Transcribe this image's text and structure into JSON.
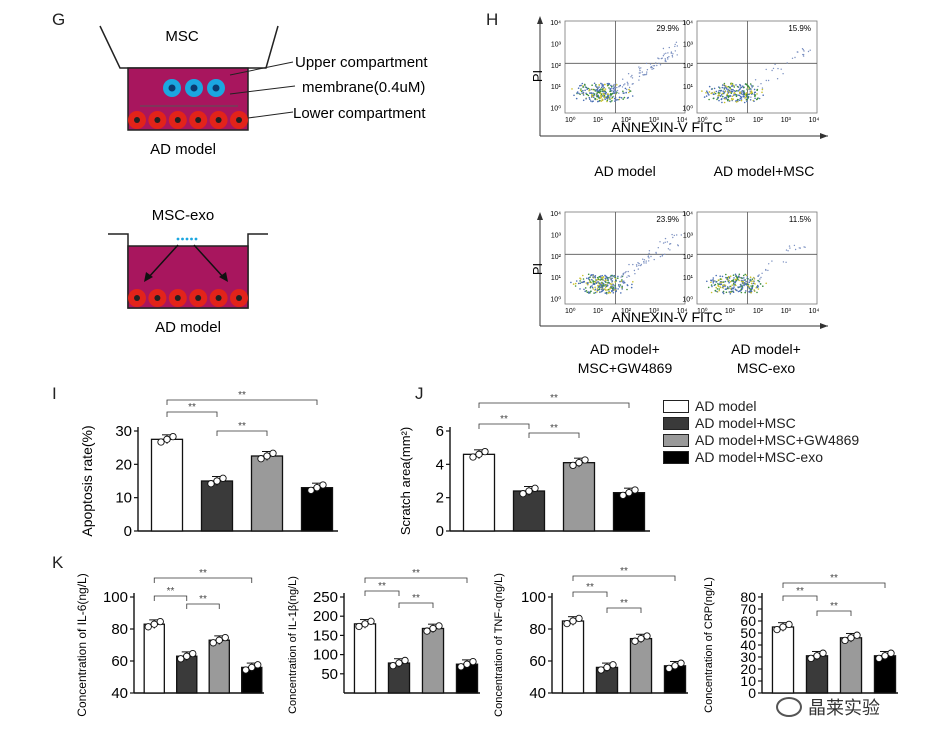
{
  "colors": {
    "magenta": "#a8165e",
    "cell_red": "#e2231a",
    "msc_blue": "#1ba7e0",
    "bar_ad": "#ffffff",
    "bar_msc": "#3a3a3a",
    "bar_gw": "#9a9a9a",
    "bar_exo": "#000000"
  },
  "panel_g": {
    "letter": "G",
    "msc_label": "MSC",
    "upper": "Upper compartment",
    "membrane": "membrane(0.4uM)",
    "lower": "Lower compartment",
    "ad_model_1": "AD model",
    "exo_label": "MSC-exo",
    "ad_model_2": "AD model"
  },
  "panel_h": {
    "letter": "H",
    "ylabel": "PI",
    "xlabel": "ANNEXIN-V FITC",
    "plots": [
      {
        "percent": "29.9%",
        "caption": [
          "AD model"
        ]
      },
      {
        "percent": "15.9%",
        "caption": [
          "AD model+MSC"
        ]
      },
      {
        "percent": "23.9%",
        "caption": [
          "AD model+",
          "MSC+GW4869"
        ]
      },
      {
        "percent": "11.5%",
        "caption": [
          "AD model+",
          "MSC-exo"
        ]
      }
    ],
    "ticks": [
      "10⁴",
      "10³",
      "10²",
      "10¹",
      "10⁰"
    ],
    "xticks": [
      "10⁰",
      "10¹",
      "10²",
      "10³",
      "10⁴"
    ]
  },
  "legend": [
    "AD model",
    "AD model+MSC",
    "AD model+MSC+GW4869",
    "AD model+MSC-exo"
  ],
  "sig": "**",
  "chart_data": [
    {
      "id": "I",
      "type": "bar",
      "ylabel": "Apoptosis rate(%)",
      "ylim": [
        0,
        30
      ],
      "yticks": [
        0,
        10,
        20,
        30
      ],
      "categories": [
        "AD model",
        "AD model+MSC",
        "AD model+MSC+GW4869",
        "AD model+MSC-exo"
      ],
      "values": [
        27.5,
        15,
        22.5,
        13
      ]
    },
    {
      "id": "J",
      "type": "bar",
      "ylabel": "Scratch area(mm²)",
      "ylim": [
        0,
        6
      ],
      "yticks": [
        0,
        2,
        4,
        6
      ],
      "categories": [
        "AD model",
        "AD model+MSC",
        "AD model+MSC+GW4869",
        "AD model+MSC-exo"
      ],
      "values": [
        4.6,
        2.4,
        4.1,
        2.3
      ]
    },
    {
      "id": "K",
      "type": "bar",
      "ylabel": "Concentration of IL-6(ng/L)",
      "ylim": [
        40,
        100
      ],
      "yticks": [
        40,
        60,
        80,
        100
      ],
      "categories": [
        "AD model",
        "AD model+MSC",
        "AD model+MSC+GW4869",
        "AD model+MSC-exo"
      ],
      "values": [
        83,
        63,
        73,
        56
      ]
    },
    {
      "id": "K2",
      "type": "bar",
      "ylabel": "Concentration of IL-1β(ng/L)",
      "ylim": [
        0,
        250
      ],
      "yticks": [
        50,
        100,
        150,
        200,
        250
      ],
      "categories": [
        "AD model",
        "AD model+MSC",
        "AD model+MSC+GW4869",
        "AD model+MSC-exo"
      ],
      "values": [
        180,
        78,
        168,
        75
      ]
    },
    {
      "id": "K3",
      "type": "bar",
      "ylabel": "Concentration of TNF-α(ng/L)",
      "ylim": [
        40,
        100
      ],
      "yticks": [
        40,
        60,
        80,
        100
      ],
      "categories": [
        "AD model",
        "AD model+MSC",
        "AD model+MSC+GW4869",
        "AD model+MSC-exo"
      ],
      "values": [
        85,
        56,
        74,
        57
      ]
    },
    {
      "id": "K4",
      "type": "bar",
      "ylabel": "Concentration of CRP(ng/L)",
      "ylim": [
        0,
        80
      ],
      "yticks": [
        0,
        10,
        20,
        30,
        40,
        50,
        60,
        70,
        80
      ],
      "categories": [
        "AD model",
        "AD model+MSC",
        "AD model+MSC+GW4869",
        "AD model+MSC-exo"
      ],
      "values": [
        55,
        31,
        46,
        31
      ]
    }
  ],
  "watermark": "晶莱实验"
}
